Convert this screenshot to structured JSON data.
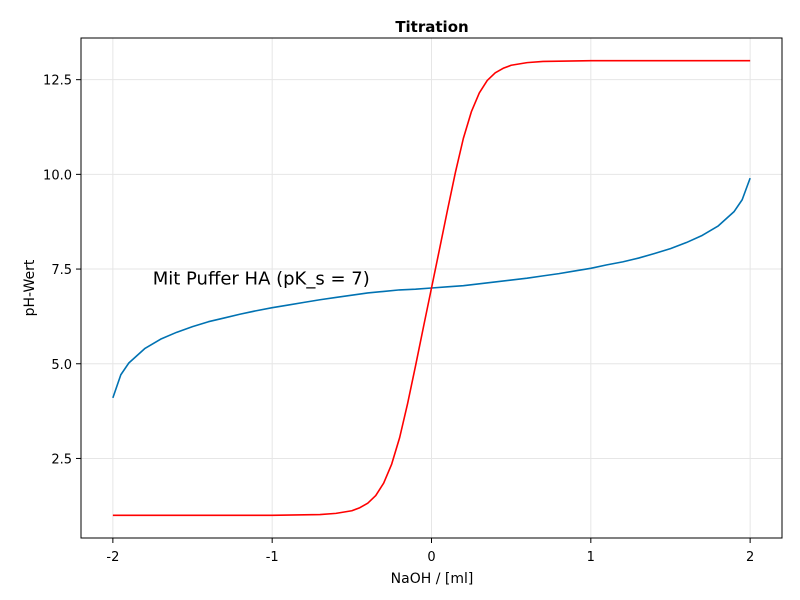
{
  "chart_data": {
    "type": "line",
    "title": "Titration",
    "xlabel": "NaOH / [ml]",
    "ylabel": "pH-Wert",
    "xlim": [
      -2.2,
      2.2
    ],
    "ylim": [
      0.4,
      13.6
    ],
    "xticks": [
      -2,
      -1,
      0,
      1,
      2
    ],
    "xtick_labels": [
      "-2",
      "-1",
      "0",
      "1",
      "2"
    ],
    "yticks": [
      2.5,
      5.0,
      7.5,
      10.0,
      12.5
    ],
    "ytick_labels": [
      "2.5",
      "5.0",
      "7.5",
      "10.0",
      "12.5"
    ],
    "grid": true,
    "annotations": [
      {
        "text": "Mit Puffer HA (pK_s = 7)",
        "x": -1.75,
        "y": 7.25
      }
    ],
    "series": [
      {
        "color": "#0072b2",
        "x": [
          -2.0,
          -1.95,
          -1.9,
          -1.8,
          -1.7,
          -1.6,
          -1.5,
          -1.4,
          -1.3,
          -1.2,
          -1.1,
          -1.0,
          -0.9,
          -0.8,
          -0.7,
          -0.6,
          -0.5,
          -0.4,
          -0.3,
          -0.2,
          -0.1,
          0.0,
          0.1,
          0.2,
          0.3,
          0.4,
          0.5,
          0.6,
          0.7,
          0.8,
          0.9,
          1.0,
          1.1,
          1.2,
          1.3,
          1.4,
          1.5,
          1.6,
          1.7,
          1.8,
          1.9,
          1.95,
          2.0
        ],
        "y": [
          4.1,
          4.71,
          5.02,
          5.4,
          5.65,
          5.83,
          5.98,
          6.11,
          6.21,
          6.31,
          6.4,
          6.48,
          6.55,
          6.62,
          6.69,
          6.75,
          6.81,
          6.87,
          6.91,
          6.95,
          6.97,
          7.0,
          7.03,
          7.06,
          7.11,
          7.16,
          7.21,
          7.26,
          7.32,
          7.38,
          7.45,
          7.52,
          7.61,
          7.69,
          7.79,
          7.91,
          8.04,
          8.2,
          8.39,
          8.64,
          9.02,
          9.33,
          9.9
        ]
      },
      {
        "color": "#ff0000",
        "x": [
          -2.0,
          -1.5,
          -1.0,
          -0.7,
          -0.6,
          -0.5,
          -0.45,
          -0.4,
          -0.35,
          -0.3,
          -0.25,
          -0.2,
          -0.15,
          -0.1,
          -0.05,
          0.0,
          0.05,
          0.1,
          0.15,
          0.2,
          0.25,
          0.3,
          0.35,
          0.4,
          0.45,
          0.5,
          0.6,
          0.7,
          1.0,
          1.5,
          2.0
        ],
        "y": [
          1.0,
          1.0,
          1.0,
          1.02,
          1.05,
          1.12,
          1.2,
          1.32,
          1.52,
          1.85,
          2.35,
          3.05,
          3.95,
          4.95,
          5.98,
          7.0,
          8.02,
          9.05,
          10.05,
          10.95,
          11.65,
          12.15,
          12.48,
          12.68,
          12.8,
          12.88,
          12.95,
          12.98,
          13.0,
          13.0,
          13.0
        ]
      }
    ]
  }
}
